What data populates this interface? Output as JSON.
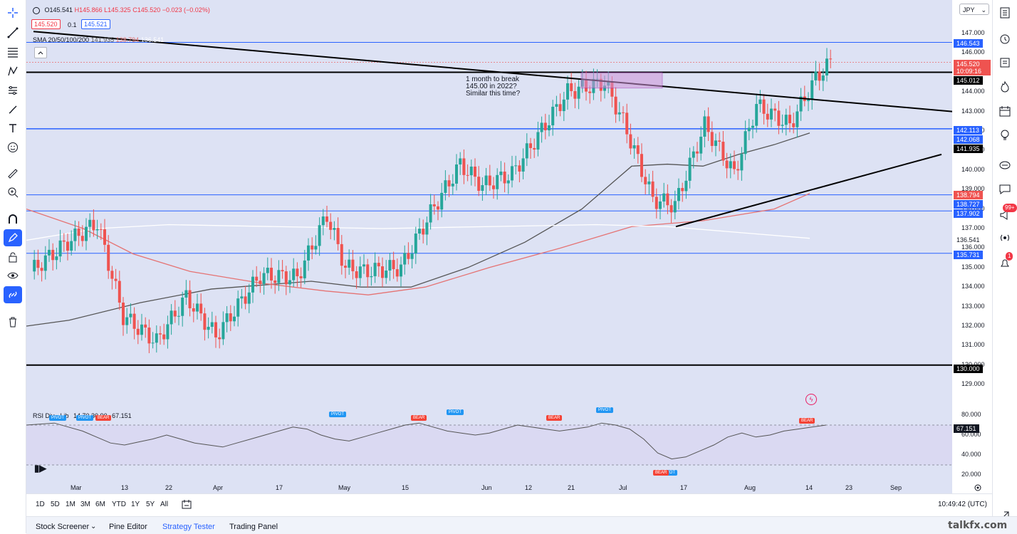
{
  "symbol_select": "JPY",
  "ohlc": {
    "o": "O145.541",
    "h": "H145.866",
    "l": "L145.325",
    "c": "C145.520",
    "chg": "−0.023 (−0.02%)"
  },
  "bid": "145.520",
  "spread": "0.1",
  "ask": "145.521",
  "sma_legend": {
    "label": "SMA 20/50/100/200",
    "v20": "141.935",
    "v50": "138.794",
    "v100": "136.541"
  },
  "rsi_legend": {
    "label": "RSI Div - Lib",
    "params": "14 70 30 90",
    "value": "67.151"
  },
  "annotation": "1 month to break 145.00 in 2022? Similar this time?",
  "price_ticks": [
    "147.000",
    "146.000",
    "145.000",
    "144.000",
    "143.000",
    "142.000",
    "141.000",
    "140.000",
    "139.000",
    "138.000",
    "137.000",
    "136.000",
    "135.000",
    "134.000",
    "133.000",
    "132.000",
    "131.000",
    "130.000",
    "129.000"
  ],
  "rsi_ticks": [
    "80.000",
    "60.000",
    "40.000",
    "20.000"
  ],
  "price_labels": {
    "l146543": "146.543",
    "cur": "145.520",
    "timer": "10:09:16",
    "l145012": "145.012",
    "l142113": "142.113",
    "l142068": "142.068",
    "l141935": "141.935",
    "l138794": "138.794",
    "l138727": "138.727",
    "l137902": "137.902",
    "l136541": "136.541",
    "l135731": "135.731",
    "l130000": "130.000",
    "rsi": "67.151"
  },
  "colors": {
    "up": "#26a69a",
    "down": "#ef5350",
    "hline": "#2962ff",
    "black": "#000000",
    "sma20": "#555555",
    "sma50": "#e57373",
    "sma100": "#ffffff",
    "bg": "#dde2f4",
    "purple": "#ce93d8"
  },
  "x_labels": [
    {
      "t": "Mar"
    },
    {
      "t": "13"
    },
    {
      "t": "22"
    },
    {
      "t": "Apr"
    },
    {
      "t": "17"
    },
    {
      "t": "May"
    },
    {
      "t": "15"
    },
    {
      "t": "Jun"
    },
    {
      "t": "12"
    },
    {
      "t": "21"
    },
    {
      "t": "Jul"
    },
    {
      "t": "17"
    },
    {
      "t": "Aug"
    },
    {
      "t": "14"
    },
    {
      "t": "23"
    },
    {
      "t": "Sep"
    }
  ],
  "signals": [
    {
      "t": "PIVOT",
      "type": "pivot"
    },
    {
      "t": "PIVOT",
      "type": "pivot"
    },
    {
      "t": "BEAR",
      "type": "bear"
    },
    {
      "t": "PIVOT",
      "type": "pivot"
    },
    {
      "t": "BEAR",
      "type": "bear"
    },
    {
      "t": "PIVOT",
      "type": "pivot"
    },
    {
      "t": "BEAR",
      "type": "bear"
    },
    {
      "t": "PIVOT",
      "type": "pivot"
    },
    {
      "t": "BEAR",
      "type": "bear"
    },
    {
      "t": "PIVOT",
      "type": "pivot"
    },
    {
      "t": "BEAR",
      "type": "bear"
    }
  ],
  "range_buttons": [
    "1D",
    "5D",
    "1M",
    "3M",
    "6M",
    "YTD",
    "1Y",
    "5Y",
    "All"
  ],
  "clock": "10:49:42 (UTC)",
  "footer_tabs": [
    "Stock Screener",
    "Pine Editor",
    "Strategy Tester",
    "Trading Panel"
  ],
  "watermark": "talkfx.com",
  "badges": {
    "ideas": "99+",
    "alerts": "1"
  }
}
